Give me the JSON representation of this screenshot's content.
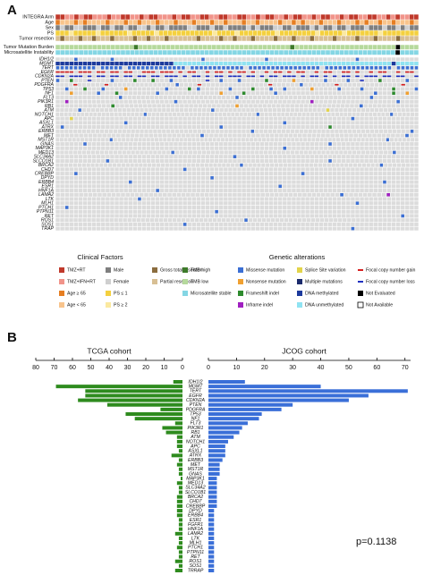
{
  "oncoprint": {
    "panel_label": "A",
    "clinical_rows": [
      {
        "name": "INTEGRA Arm",
        "cells": "aabbabaabbbabbaabbabaabbbabaabbaabbaabbaabbabaabbabaabbabaabbabaabbaabbababbaa"
      },
      {
        "name": "Age",
        "cells": "cdddcdcddddcdddcddcdddcdddcdddcdddcddcdddcddcddddcddcdcdddcdddcdddcdcddcddcdddcd"
      },
      {
        "name": "Sex",
        "cells": "efeeffeeefeefeefeeffefeefeeeeffeeefeefeeeefefeeeffeefeeefefeefeefeeefeeefeefefee"
      },
      {
        "name": "PS",
        "cells": "ggghggggghgggggghggggghgggggggggggghgggghgggggggghgggggggghggggghggggggghgggggggg"
      },
      {
        "name": "Tumor resection",
        "cells": "jijjjijjijjjijjjjijjijjjijjjjjjijjjjijjijjjijjjjijjjijjjijjjjijjjjijjjijjjjijjjj"
      }
    ],
    "track_rows": [
      {
        "name": "Tumor Mutation Burden",
        "cells": "lllllllllllllllllklllllllllllllllllllllllllllllllllkllllllllllllllllllllllEllll"
      },
      {
        "name": "Microsatellite Instability",
        "cells": "mmmmmmmmmmmmmmmmmmmmmmmmmmmmmmmmmmmmmmmmmmmmmmmmmmmmmmmmmmmmmmmmmmmmmmmmmEmmmm"
      }
    ],
    "gene_rows": [
      {
        "name": "IDH1/2",
        "cells": "....M.......M...................M.............M...................M............."
      },
      {
        "name": "MGMT",
        "cells": "YYYYYYYYYYYYYYYYYYYYYYYYYYZZZZZZZZZZZZZZZZZZZZZZZZZZZZZZZZZZZZZZZZZZZZZZZZYZZZZZ"
      },
      {
        "name": "TERT",
        "cells": "MMMMMMMMM.MMMMM.MMMMMMMMMMMMM.MMMMMMMMMMMM.MMMMMMMMMMMMMMMM.MMMMMMMMMMMMMMM.MMMMM"
      },
      {
        "name": "EGFR",
        "cells": "GGGG.GGG.GG.GG.GG..GGG.GGG.G.GG..G.GG.G.GG.G..G.GG.G.GG..G.GG..GG.G..G.GG..G.GG."
      },
      {
        "name": "CDKN2A",
        "cells": "LL.LLL.L.LL.LL.LL.LL.LL.LLL.L.LL.L.LL.LLL.LL.L.LL.LLL.L.LL.L.L.LL.L.LLL.LL.LL..L"
      },
      {
        "name": "PTEN",
        "cells": "M..F...L....M....F...F...M.......L..M...M.....F.....N......M....M..L...F.....M.."
      },
      {
        "name": "PDGFRA",
        "cells": "....G......G...............M....G...............G......M.......G..............G..."
      },
      {
        "name": "TP53",
        "cells": "..M...F...M....N........M....F.M......M....F...M..M.....N.....M....M......F....M"
      },
      {
        "name": "NF1",
        "cells": "...N.....M...F........M.............N....F......M.....................M...F..N.."
      },
      {
        "name": "FLT3",
        "cells": "..............M.........................M.............................M.........."
      },
      {
        "name": "PIK3R1",
        "cells": "..I.......................M.............................I..................M...."
      },
      {
        "name": "RB1",
        "cells": "............F..........................N..........................M............"
      },
      {
        "name": "ATM",
        "cells": ".....M.............................M.........................S...................."
      },
      {
        "name": "NOTCH1",
        "cells": ".....................M..........................M...............................M......"
      },
      {
        "name": "APC",
        "cells": "...S.............................................................M.............."
      },
      {
        "name": "ASXL1",
        "cells": "...............M..................................M............................."
      },
      {
        "name": "ATRX",
        "cells": ".M..................................M.......................F..................."
      },
      {
        "name": "ERBB3",
        "cells": "............................................M...................................M."
      },
      {
        "name": "MET",
        "cells": "...............................M...........................................M.."
      },
      {
        "name": "MST1R",
        "cells": ".............M..................................................................M......."
      },
      {
        "name": "GNAS",
        "cells": "......M.....................................................M..................."
      },
      {
        "name": "MAP3K1",
        "cells": "..................................................M............................."
      },
      {
        "name": "MED13",
        "cells": "..........................M.................................................M....."
      },
      {
        "name": "SLC34A2",
        "cells": ".......................................M........................................"
      },
      {
        "name": "SLCO1B1",
        "cells": "...........M................................................M..................."
      },
      {
        "name": "BRCA2",
        "cells": "..........................................M...............................M........"
      },
      {
        "name": "CHD7",
        "cells": "............................M..................................................."
      },
      {
        "name": "CREBBP",
        "cells": "....M.................................................M........................."
      },
      {
        "name": "DPYD",
        "cells": "..................................M............................................."
      },
      {
        "name": "ERBB4",
        "cells": "................M.......................................................M......."
      },
      {
        "name": "ESR1",
        "cells": ".................................................M.............................."
      },
      {
        "name": "HNF1A",
        "cells": "......................M........................................................."
      },
      {
        "name": "LAMA2",
        "cells": ".............................................................M.........I......"
      },
      {
        "name": "LTK",
        "cells": "..................M............................................................."
      },
      {
        "name": "MLH1",
        "cells": "..................................................................M............."
      },
      {
        "name": "PTCH1",
        "cells": "..M............................................................................."
      },
      {
        "name": "PTPN11",
        "cells": "...................................M............................................"
      },
      {
        "name": "RET",
        "cells": "............................................................................M..."
      },
      {
        "name": "ROS1",
        "cells": "..........................................M......................................"
      },
      {
        "name": "SOS1",
        "cells": "............................M..................................................."
      },
      {
        "name": "TRAP",
        "cells": ".................................................................M.............."
      }
    ]
  },
  "legend": {
    "clinical_title": "Clinical Factors",
    "genetic_title": "Genetic alterations",
    "columns": [
      [
        {
          "symbol": "a",
          "label": "TMZ+RT",
          "color": "#c0392b"
        },
        {
          "symbol": "b",
          "label": "TMZ+IFN+RT",
          "color": "#f1948a"
        },
        {
          "symbol": "c",
          "label": "Age ≥ 65",
          "color": "#e67e22"
        },
        {
          "symbol": "d",
          "label": "Age < 65",
          "color": "#f8c48c"
        }
      ],
      [
        {
          "symbol": "e",
          "label": "Male",
          "color": "#7f7f7f"
        },
        {
          "symbol": "f",
          "label": "Female",
          "color": "#cfcfcf"
        },
        {
          "symbol": "g",
          "label": "PS ≤ 1",
          "color": "#f4d03f"
        },
        {
          "symbol": "h",
          "label": "PS ≥ 2",
          "color": "#fbe9a0"
        }
      ],
      [
        {
          "symbol": "i",
          "label": "Gross total resection",
          "color": "#8b6d3f"
        },
        {
          "symbol": "j",
          "label": "Partial resection",
          "color": "#d8bf94"
        }
      ],
      [
        {
          "symbol": "k",
          "label": "TMB high",
          "color": "#3d7a2a"
        },
        {
          "symbol": "l",
          "label": "TMB low",
          "color": "#b5d99c"
        },
        {
          "symbol": "m",
          "label": "Microsatellite stable",
          "color": "#84d6e4"
        }
      ],
      [
        {
          "symbol": "M",
          "label": "Missense mutation",
          "color": "#3b6fd4"
        },
        {
          "symbol": "N",
          "label": "Nonsense mutation",
          "color": "#f0a030"
        },
        {
          "symbol": "F",
          "label": "Frameshift indel",
          "color": "#2e8b2e"
        },
        {
          "symbol": "I",
          "label": "Inframe indel",
          "color": "#a020c0"
        }
      ],
      [
        {
          "symbol": "S",
          "label": "Splice Site variation",
          "color": "#e3d44a"
        },
        {
          "symbol": "U",
          "label": "Multiple mutations",
          "color": "#1a2a6c"
        },
        {
          "symbol": "Y",
          "label": "DNA methylated",
          "color": "#1c3a9c"
        },
        {
          "symbol": "Z",
          "label": "DNA unmethylated",
          "color": "#8fe3f2"
        }
      ],
      [
        {
          "symbol": "G",
          "label": "Focal copy number gain",
          "color": "#d62020"
        },
        {
          "symbol": "L",
          "label": "Focal copy number loss",
          "color": "#2030c0"
        },
        {
          "symbol": "E",
          "label": "Not Evaluated",
          "color": "#000000"
        },
        {
          "symbol": "A",
          "label": "Not Available",
          "color": "#ffffff"
        }
      ]
    ]
  },
  "chart_data": {
    "type": "butterfly",
    "panel_label": "B",
    "annotation": "p=0.1138",
    "categories": [
      "IDH1/2",
      "MGMT",
      "TERT",
      "EGFR",
      "CDKN2A",
      "PTEN",
      "PDGFRA",
      "TP53",
      "NF1",
      "FLT3",
      "PIK3R1",
      "RB1",
      "ATM",
      "NOTCH1",
      "APC",
      "ASXL1",
      "ATRX",
      "ERBB3",
      "MET",
      "MST1R",
      "GNAS",
      "MAP3K1",
      "MED13",
      "SLC34A2",
      "SLCO1B1",
      "BRCA2",
      "CHD7",
      "CREBBP",
      "DPYD",
      "ERBB4",
      "ESR1",
      "FGFR1",
      "HNF1A",
      "LAMA2",
      "LTK",
      "MLH1",
      "PTCH1",
      "PTPN11",
      "RET",
      "ROS1",
      "SOS1",
      "TRRAP"
    ],
    "series": [
      {
        "name": "TCGA cohort",
        "color": "#2e8b1e",
        "xlim": [
          0,
          80
        ],
        "xticks": [
          80,
          70,
          60,
          50,
          40,
          30,
          20,
          10,
          0
        ],
        "values": [
          5,
          69,
          53,
          53,
          57,
          41,
          12,
          31,
          26,
          4,
          11,
          9,
          3,
          3,
          3,
          2,
          6,
          2,
          3,
          2,
          2,
          1,
          3,
          2,
          2,
          3,
          3,
          3,
          3,
          3,
          2,
          2,
          2,
          4,
          2,
          2,
          3,
          2,
          2,
          4,
          2,
          4
        ]
      },
      {
        "name": "JCOG cohort",
        "color": "#3a6fd8",
        "xlim": [
          0,
          72
        ],
        "xticks": [
          0,
          10,
          20,
          30,
          40,
          50,
          60,
          70
        ],
        "values": [
          13,
          40,
          71,
          57,
          50,
          30,
          26,
          19,
          18,
          14,
          12,
          11,
          9,
          7,
          6,
          6,
          6,
          5,
          4,
          4,
          4,
          3,
          3,
          3,
          3,
          3,
          3,
          3,
          2,
          2,
          2,
          2,
          2,
          2,
          2,
          2,
          2,
          2,
          2,
          2,
          2,
          2
        ]
      }
    ]
  }
}
